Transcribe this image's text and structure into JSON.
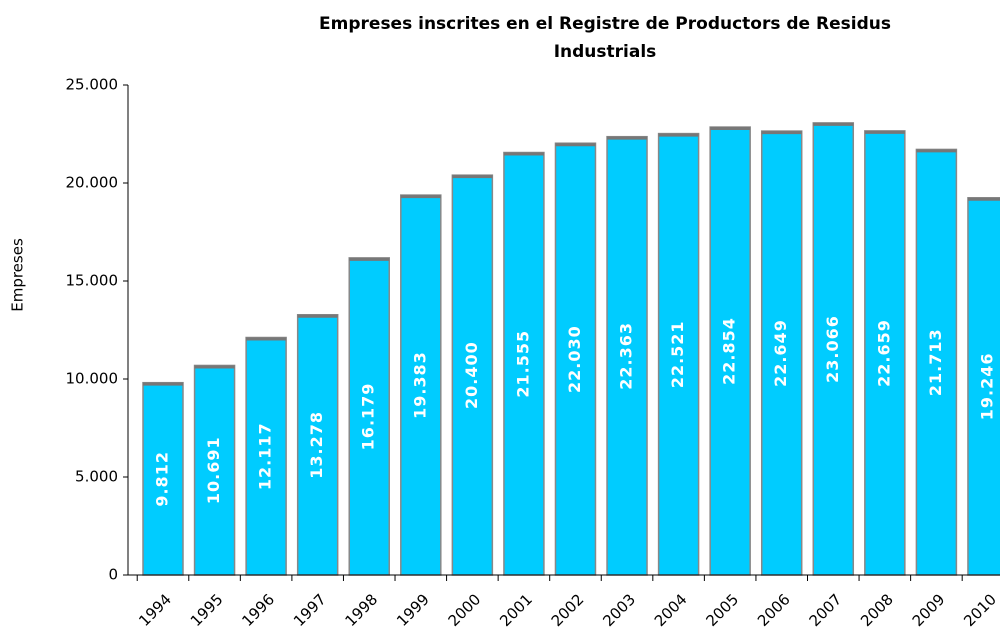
{
  "chart_data": {
    "type": "bar",
    "title": [
      "Empreses inscrites en el Registre de Productors de Residus",
      "Industrials"
    ],
    "ylabel": "Empreses",
    "categories": [
      "1994",
      "1995",
      "1996",
      "1997",
      "1998",
      "1999",
      "2000",
      "2001",
      "2002",
      "2003",
      "2004",
      "2005",
      "2006",
      "2007",
      "2008",
      "2009",
      "2010"
    ],
    "values": [
      9812,
      10691,
      12117,
      13278,
      16179,
      19383,
      20400,
      21555,
      22030,
      22363,
      22521,
      22854,
      22649,
      23066,
      22659,
      21713,
      19246
    ],
    "value_labels": [
      "9.812",
      "10.691",
      "12.117",
      "13.278",
      "16.179",
      "19.383",
      "20.400",
      "21.555",
      "22.030",
      "22.363",
      "22.521",
      "22.854",
      "22.649",
      "23.066",
      "22.659",
      "21.713",
      "19.246"
    ],
    "color": "#00ccff",
    "ylim": [
      0,
      25000
    ],
    "yticks": [
      0,
      {
        "value": 5000,
        "label": "5.000"
      },
      {
        "value": 10000,
        "label": "10.000"
      },
      {
        "value": 15000,
        "label": "15.000"
      },
      {
        "value": 20000,
        "label": "20.000"
      },
      {
        "value": 25000,
        "label": "25.000"
      }
    ]
  }
}
